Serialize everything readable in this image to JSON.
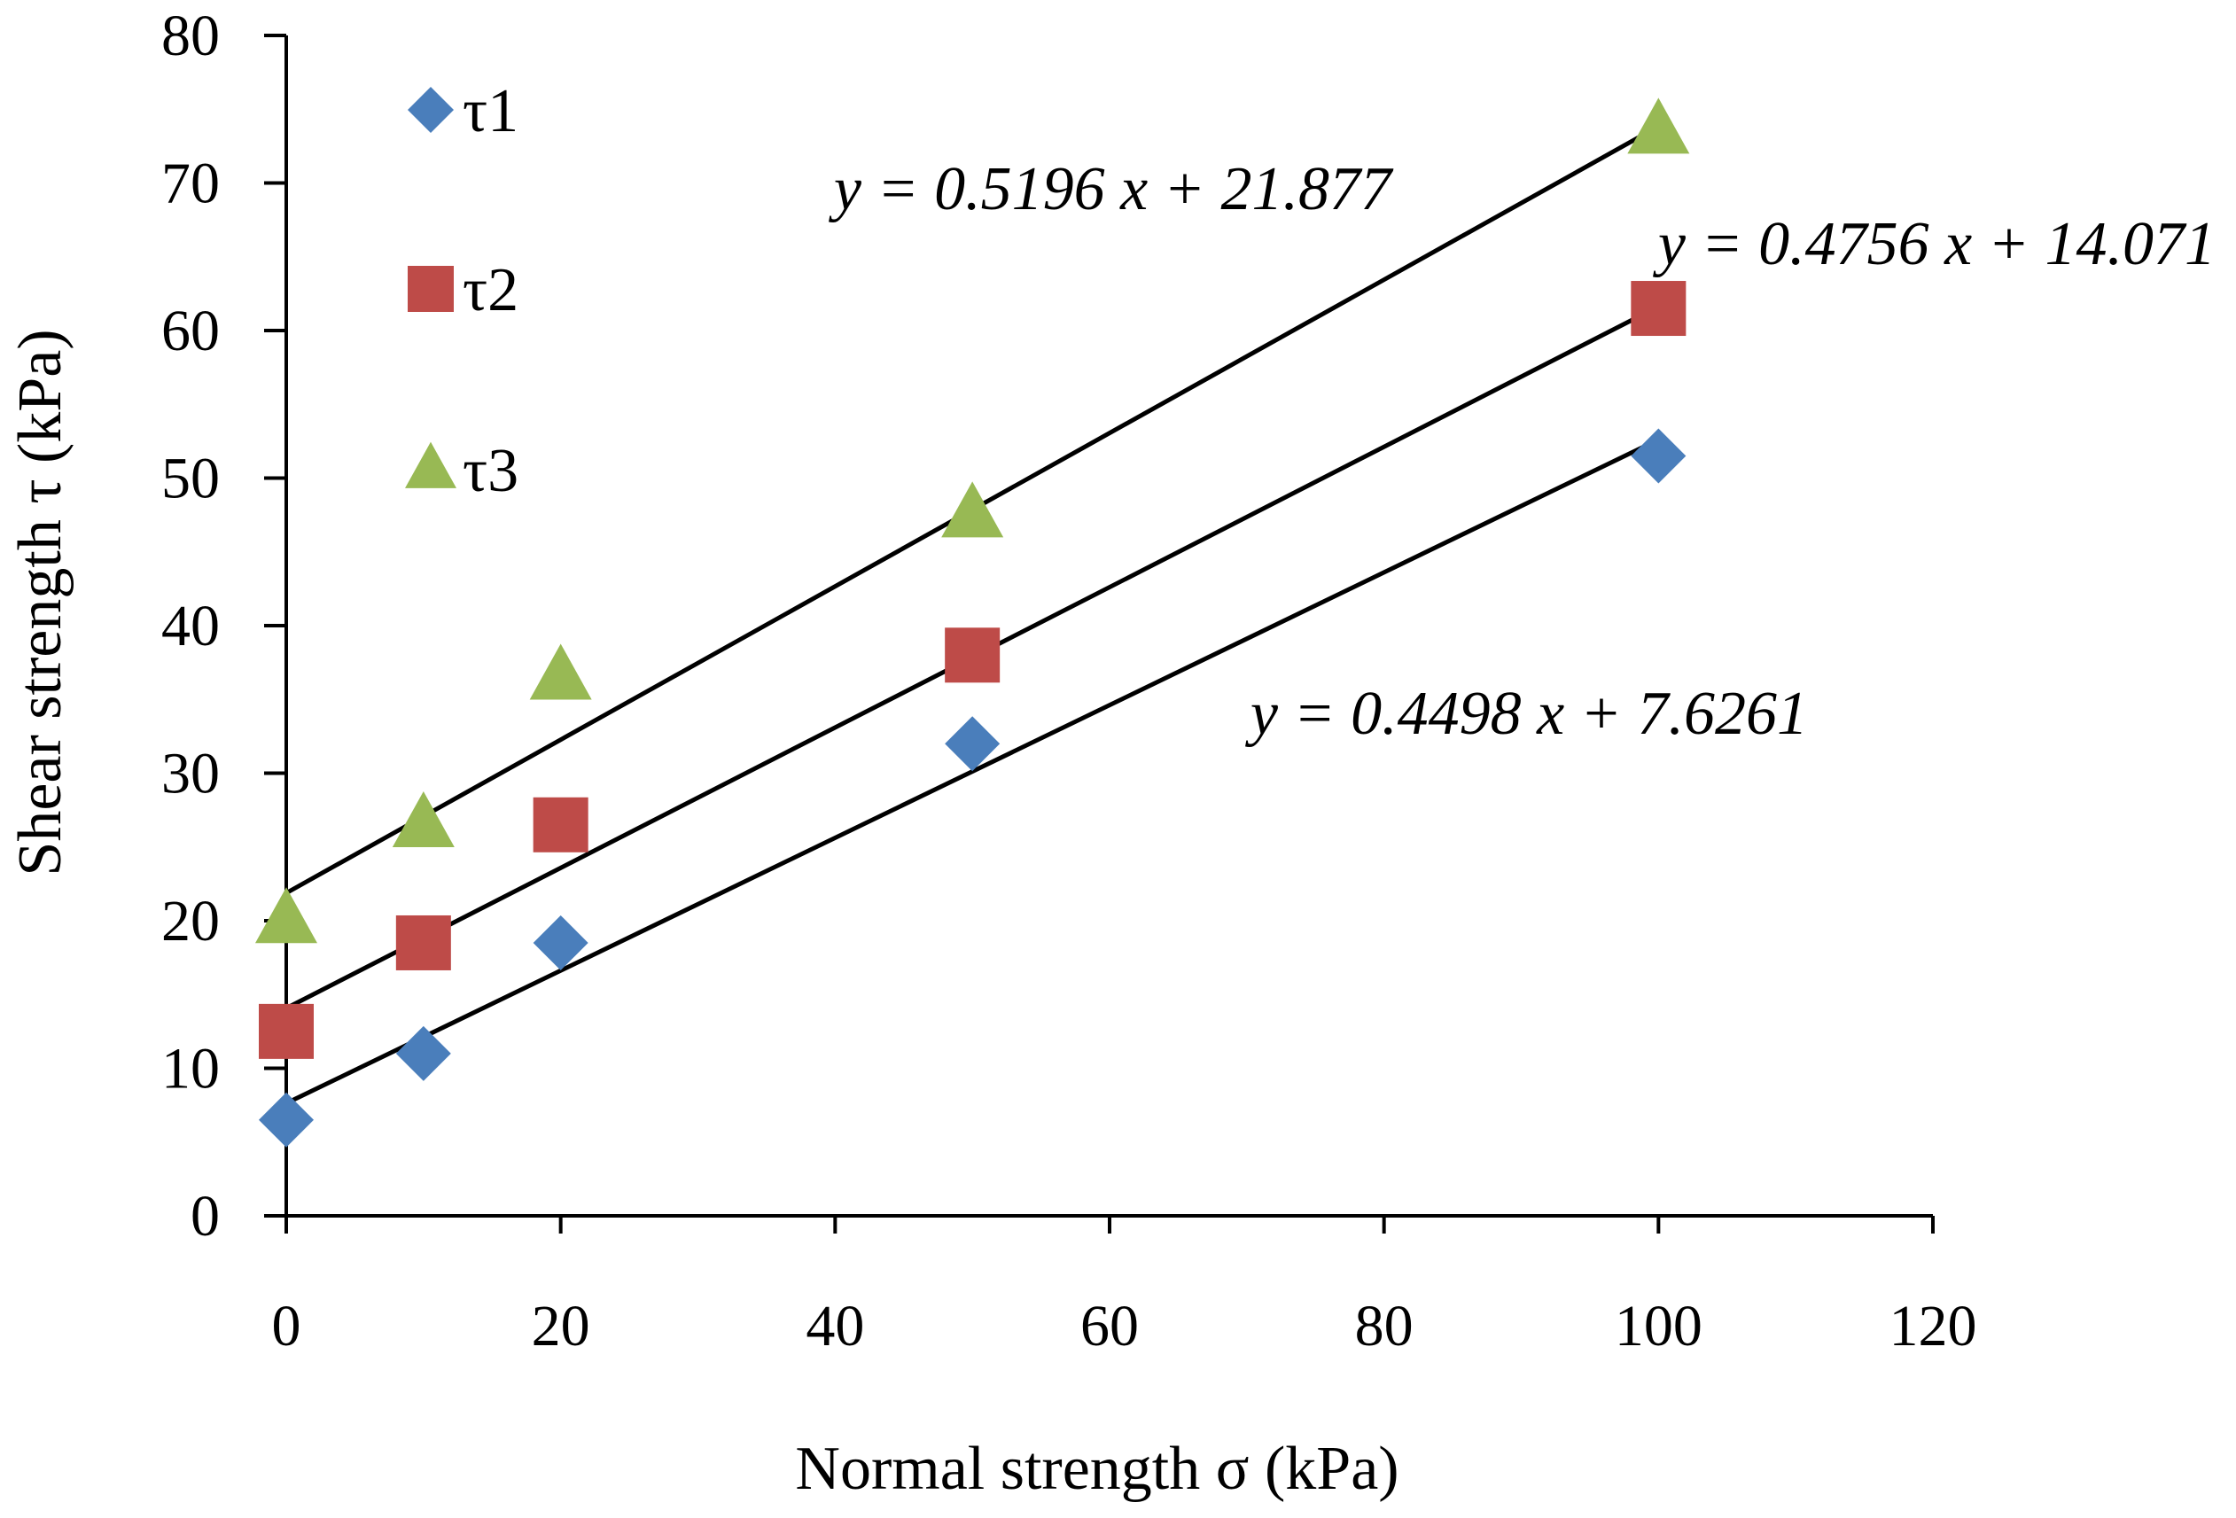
{
  "chart_data": {
    "type": "scatter",
    "title": "",
    "xlabel": "Normal strength σ (kPa)",
    "ylabel": "Shear strength τ (kPa)",
    "xlim": [
      0,
      120
    ],
    "ylim": [
      0,
      80
    ],
    "xticks": [
      0,
      20,
      40,
      60,
      80,
      100,
      120
    ],
    "yticks": [
      0,
      10,
      20,
      30,
      40,
      50,
      60,
      70,
      80
    ],
    "grid": false,
    "legend_position": "top-left",
    "series": [
      {
        "name": "τ1",
        "marker": "diamond",
        "color": "#4a7ebb",
        "x": [
          0,
          10,
          20,
          50,
          100
        ],
        "y": [
          6.5,
          11,
          18.5,
          32,
          51.5
        ],
        "trendline": {
          "slope": 0.4498,
          "intercept": 7.6261,
          "equation": "y = 0.4498 x + 7.6261"
        }
      },
      {
        "name": "τ2",
        "marker": "square",
        "color": "#be4b48",
        "x": [
          0,
          10,
          20,
          50,
          100
        ],
        "y": [
          12.5,
          18.5,
          26.5,
          38,
          61.5
        ],
        "trendline": {
          "slope": 0.4756,
          "intercept": 14.071,
          "equation": "y = 0.4756 x + 14.071"
        }
      },
      {
        "name": "τ3",
        "marker": "triangle",
        "color": "#98b954",
        "x": [
          0,
          10,
          20,
          50,
          100
        ],
        "y": [
          20,
          26.5,
          36.5,
          47.5,
          73.5
        ],
        "trendline": {
          "slope": 0.5196,
          "intercept": 21.877,
          "equation": "y = 0.5196 x + 21.877"
        }
      }
    ]
  }
}
